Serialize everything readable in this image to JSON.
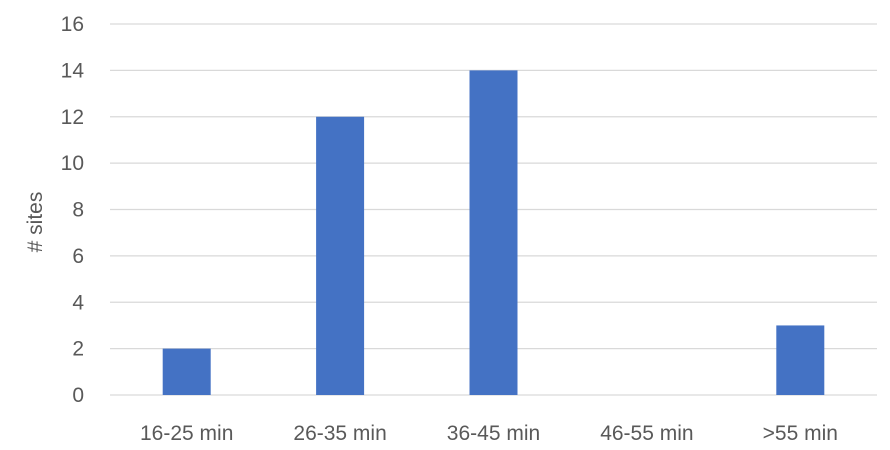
{
  "chart_data": {
    "type": "bar",
    "title": "",
    "xlabel": "",
    "ylabel": "# sites",
    "categories": [
      "16-25 min",
      "26-35 min",
      "36-45 min",
      "46-55 min",
      ">55 min"
    ],
    "values": [
      2,
      12,
      14,
      0,
      3
    ],
    "ylim": [
      0,
      16
    ],
    "yticks": [
      0,
      2,
      4,
      6,
      8,
      10,
      12,
      14,
      16
    ],
    "grid": true,
    "legend": "none",
    "bar_color": "#4472c4",
    "gridline_color": "#d9d9d9",
    "text_color": "#595959"
  }
}
